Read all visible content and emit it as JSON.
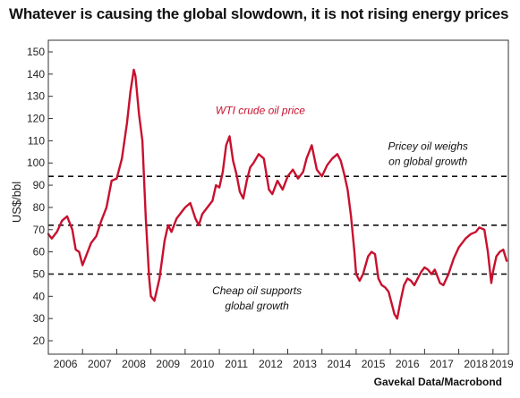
{
  "chart_data": {
    "type": "line",
    "title": "Whatever is causing the global slowdown, it is not rising energy prices",
    "source": "Gavekal Data/Macrobond",
    "ylabel": "US$/bbl",
    "xlabel": "",
    "ylim": [
      20,
      150
    ],
    "y_ticks": [
      20,
      30,
      40,
      50,
      60,
      70,
      80,
      90,
      100,
      110,
      120,
      130,
      140,
      150
    ],
    "xlim": [
      2006.0,
      2019.45
    ],
    "x_tick_labels": [
      "2006",
      "2007",
      "2008",
      "2009",
      "2010",
      "2011",
      "2012",
      "2013",
      "2014",
      "2015",
      "2016",
      "2017",
      "2018",
      "2019"
    ],
    "grid": false,
    "color": "#c8102e",
    "series": [
      {
        "name": "WTI crude oil price",
        "x": [
          2006.0,
          2006.1,
          2006.25,
          2006.4,
          2006.55,
          2006.7,
          2006.8,
          2006.9,
          2007.0,
          2007.1,
          2007.25,
          2007.4,
          2007.55,
          2007.7,
          2007.85,
          2008.0,
          2008.15,
          2008.3,
          2008.4,
          2008.5,
          2008.55,
          2008.65,
          2008.75,
          2008.85,
          2008.95,
          2009.0,
          2009.1,
          2009.25,
          2009.4,
          2009.5,
          2009.6,
          2009.75,
          2009.9,
          2010.0,
          2010.15,
          2010.3,
          2010.4,
          2010.5,
          2010.65,
          2010.8,
          2010.9,
          2011.0,
          2011.1,
          2011.2,
          2011.3,
          2011.4,
          2011.5,
          2011.6,
          2011.7,
          2011.8,
          2011.9,
          2012.0,
          2012.15,
          2012.3,
          2012.45,
          2012.55,
          2012.7,
          2012.85,
          2013.0,
          2013.15,
          2013.3,
          2013.45,
          2013.55,
          2013.7,
          2013.85,
          2014.0,
          2014.15,
          2014.3,
          2014.45,
          2014.55,
          2014.65,
          2014.75,
          2014.85,
          2014.95,
          2015.0,
          2015.1,
          2015.2,
          2015.35,
          2015.45,
          2015.55,
          2015.65,
          2015.75,
          2015.85,
          2015.95,
          2016.05,
          2016.12,
          2016.2,
          2016.3,
          2016.4,
          2016.5,
          2016.6,
          2016.7,
          2016.8,
          2016.9,
          2017.0,
          2017.1,
          2017.2,
          2017.3,
          2017.45,
          2017.55,
          2017.7,
          2017.85,
          2018.0,
          2018.1,
          2018.2,
          2018.35,
          2018.5,
          2018.6,
          2018.75,
          2018.85,
          2018.95,
          2019.0,
          2019.1,
          2019.2,
          2019.3,
          2019.4
        ],
        "values": [
          68,
          66,
          69,
          74,
          76,
          70,
          61,
          60,
          54,
          58,
          64,
          67,
          74,
          80,
          92,
          93,
          102,
          118,
          132,
          142,
          139,
          122,
          110,
          75,
          48,
          40,
          38,
          48,
          65,
          72,
          69,
          75,
          78,
          80,
          82,
          75,
          72,
          77,
          80,
          83,
          90,
          89,
          96,
          108,
          112,
          101,
          95,
          87,
          84,
          92,
          98,
          100,
          104,
          102,
          88,
          86,
          92,
          88,
          94,
          97,
          93,
          96,
          102,
          108,
          97,
          94,
          99,
          102,
          104,
          101,
          95,
          88,
          76,
          60,
          50,
          47,
          50,
          58,
          60,
          59,
          48,
          45,
          44,
          42,
          36,
          32,
          30,
          38,
          45,
          48,
          47,
          45,
          48,
          51,
          53,
          52,
          50,
          52,
          46,
          45,
          50,
          57,
          62,
          64,
          66,
          68,
          69,
          71,
          70,
          60,
          46,
          51,
          58,
          60,
          61,
          56
        ]
      }
    ],
    "hlines": [
      {
        "y": 94
      },
      {
        "y": 72
      },
      {
        "y": 50
      }
    ],
    "annotations": [
      {
        "text": "WTI crude oil price",
        "x": 2012.2,
        "y": 122
      },
      {
        "text": "Pricey oil weighs",
        "x": 2017.1,
        "y": 106
      },
      {
        "text": "on global growth",
        "x": 2017.1,
        "y": 99
      },
      {
        "text": "Cheap oil supports",
        "x": 2012.1,
        "y": 41
      },
      {
        "text": "global growth",
        "x": 2012.1,
        "y": 34
      }
    ]
  }
}
